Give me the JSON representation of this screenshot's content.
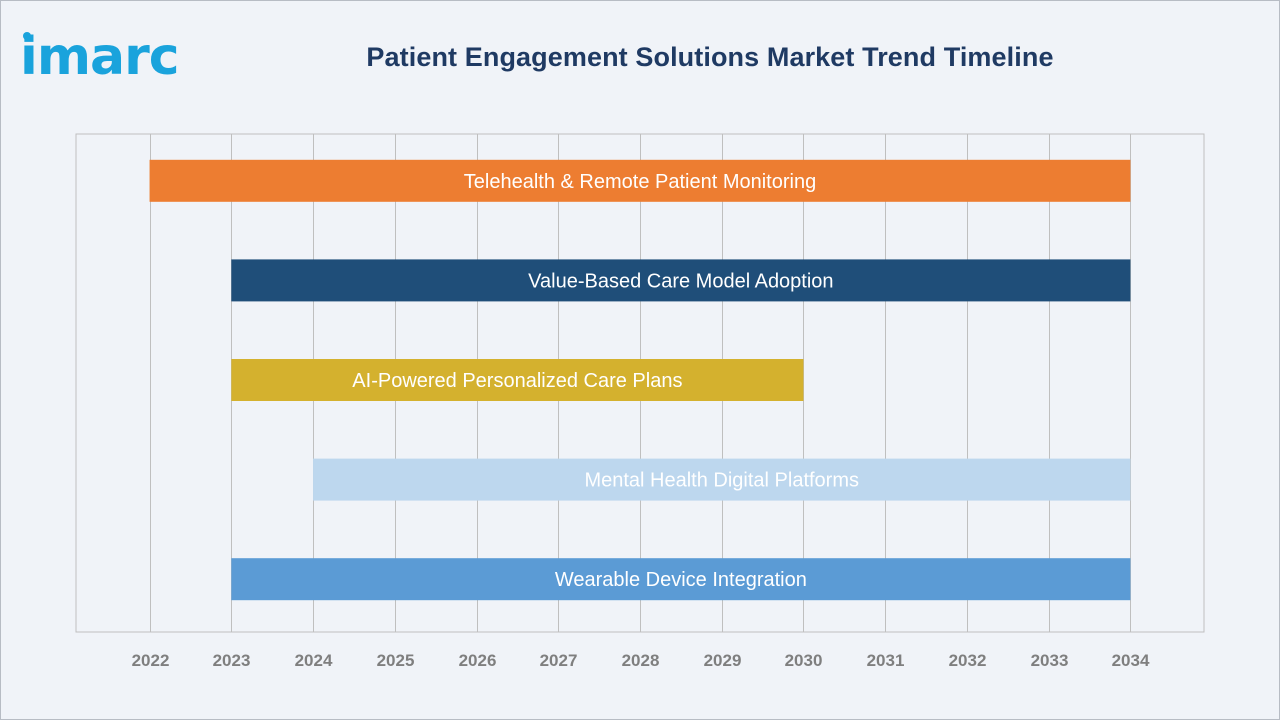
{
  "brand": {
    "logo_text": "imarc",
    "logo_color": "#1aa3dc"
  },
  "chart_data": {
    "type": "bar",
    "orientation": "horizontal-timeline",
    "title": "Patient Engagement Solutions Market Trend Timeline",
    "xlabel": "",
    "ylabel": "",
    "x_ticks": [
      "2022",
      "2023",
      "2024",
      "2025",
      "2026",
      "2027",
      "2028",
      "2029",
      "2030",
      "2031",
      "2032",
      "2033",
      "2034"
    ],
    "xlim": [
      2021.1,
      2034.9
    ],
    "grid": true,
    "legend": "none",
    "series": [
      {
        "label": "Telehealth & Remote Patient Monitoring",
        "start": 2022,
        "end": 2034,
        "color": "#ed7d31"
      },
      {
        "label": "Value-Based Care Model Adoption",
        "start": 2023,
        "end": 2034,
        "color": "#1f4e79"
      },
      {
        "label": "AI-Powered Personalized Care Plans",
        "start": 2023,
        "end": 2030,
        "color": "#d4b12e"
      },
      {
        "label": "Mental Health Digital Platforms",
        "start": 2024,
        "end": 2034,
        "color": "#bdd7ee"
      },
      {
        "label": "Wearable Device Integration",
        "start": 2023,
        "end": 2034,
        "color": "#5b9bd5"
      }
    ]
  }
}
